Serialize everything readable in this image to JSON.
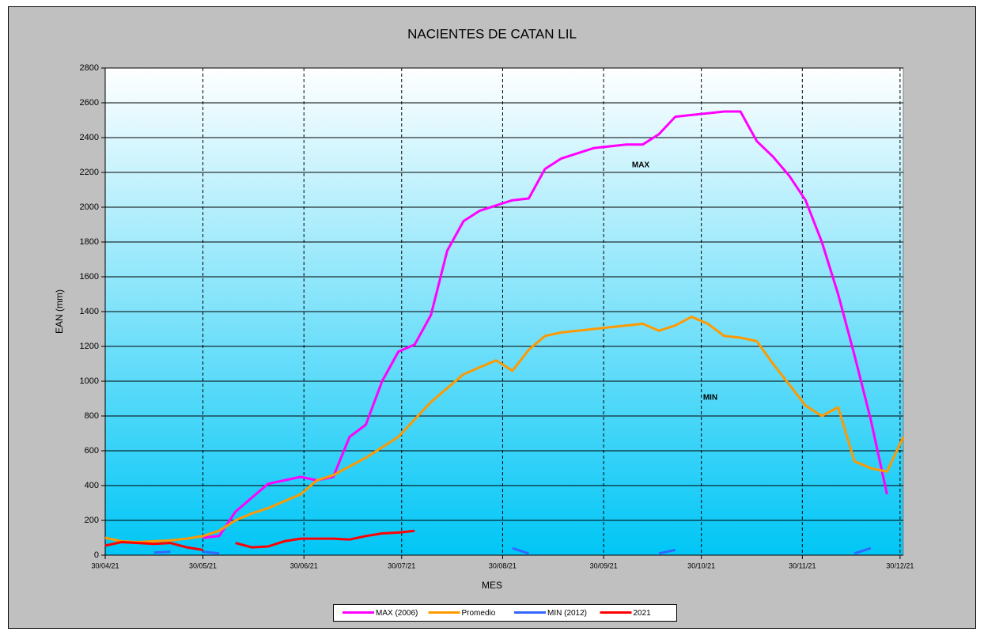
{
  "chart_data": {
    "type": "line",
    "title": "NACIENTES DE CATAN LIL",
    "xlabel": "MES",
    "ylabel": "EAN (mm)",
    "x": [
      "2021-04-30",
      "2021-05-05",
      "2021-05-10",
      "2021-05-15",
      "2021-05-20",
      "2021-05-25",
      "2021-05-30",
      "2021-06-04",
      "2021-06-09",
      "2021-06-14",
      "2021-06-19",
      "2021-06-24",
      "2021-06-29",
      "2021-07-04",
      "2021-07-09",
      "2021-07-14",
      "2021-07-19",
      "2021-07-24",
      "2021-07-29",
      "2021-08-03",
      "2021-08-08",
      "2021-08-13",
      "2021-08-18",
      "2021-08-23",
      "2021-08-28",
      "2021-09-02",
      "2021-09-07",
      "2021-09-12",
      "2021-09-17",
      "2021-09-22",
      "2021-09-27",
      "2021-10-02",
      "2021-10-07",
      "2021-10-12",
      "2021-10-17",
      "2021-10-22",
      "2021-10-27",
      "2021-11-01",
      "2021-11-06",
      "2021-11-11",
      "2021-11-16",
      "2021-11-21",
      "2021-11-26",
      "2021-12-01",
      "2021-12-06",
      "2021-12-11",
      "2021-12-16",
      "2021-12-21",
      "2021-12-26",
      "2021-12-31"
    ],
    "series": [
      {
        "name": "MAX (2006)",
        "color": "#ff00ff",
        "values": [
          null,
          null,
          null,
          null,
          90,
          null,
          100,
          110,
          250,
          330,
          410,
          430,
          450,
          430,
          450,
          680,
          750,
          1000,
          1170,
          1210,
          1380,
          1750,
          1920,
          1980,
          2010,
          2040,
          2050,
          2220,
          2280,
          2310,
          2340,
          2350,
          2360,
          2360,
          2420,
          2520,
          2530,
          2540,
          2550,
          2550,
          2380,
          2290,
          2180,
          2040,
          1800,
          1500,
          1150,
          780,
          350,
          null
        ]
      },
      {
        "name": "Promedio",
        "color": "#ff9900",
        "values": [
          100,
          80,
          75,
          80,
          85,
          95,
          110,
          140,
          200,
          240,
          270,
          310,
          350,
          430,
          460,
          510,
          560,
          620,
          680,
          780,
          880,
          960,
          1040,
          1080,
          1120,
          1060,
          1180,
          1260,
          1280,
          1290,
          1300,
          1310,
          1320,
          1330,
          1290,
          1320,
          1370,
          1330,
          1260,
          1250,
          1230,
          1100,
          980,
          860,
          800,
          850,
          540,
          500,
          480,
          680
        ]
      },
      {
        "name": "MIN (2012)",
        "color": "#3366ff",
        "values": [
          null,
          null,
          null,
          15,
          20,
          null,
          20,
          10,
          null,
          null,
          null,
          null,
          null,
          null,
          null,
          null,
          null,
          null,
          null,
          null,
          null,
          null,
          null,
          null,
          null,
          40,
          10,
          null,
          null,
          null,
          null,
          null,
          null,
          null,
          10,
          30,
          null,
          null,
          null,
          null,
          null,
          null,
          null,
          null,
          null,
          null,
          10,
          40,
          null,
          null
        ]
      },
      {
        "name": "2021",
        "color": "#ff0000",
        "values": [
          55,
          75,
          70,
          65,
          70,
          45,
          30,
          null,
          70,
          45,
          50,
          80,
          95,
          95,
          95,
          90,
          110,
          125,
          130,
          140,
          null,
          null,
          null,
          null,
          null,
          null,
          null,
          null,
          null,
          null,
          null,
          null,
          null,
          null,
          null,
          null,
          null,
          null,
          null,
          null,
          null,
          null,
          null,
          null,
          null,
          null,
          null,
          null,
          null,
          null
        ]
      }
    ],
    "xlim": [
      "2021-04-30",
      "2021-12-31"
    ],
    "xticks": [
      {
        "value": "2021-04-30",
        "label": "30/04/21"
      },
      {
        "value": "2021-05-30",
        "label": "30/05/21"
      },
      {
        "value": "2021-06-30",
        "label": "30/06/21"
      },
      {
        "value": "2021-07-30",
        "label": "30/07/21"
      },
      {
        "value": "2021-08-30",
        "label": "30/08/21"
      },
      {
        "value": "2021-09-30",
        "label": "30/09/21"
      },
      {
        "value": "2021-10-30",
        "label": "30/10/21"
      },
      {
        "value": "2021-11-30",
        "label": "30/11/21"
      },
      {
        "value": "2021-12-30",
        "label": "30/12/21"
      }
    ],
    "ylim": [
      0,
      2800
    ],
    "yticks": [
      0,
      200,
      400,
      600,
      800,
      1000,
      1200,
      1400,
      1600,
      1800,
      2000,
      2200,
      2400,
      2600,
      2800
    ],
    "grid": true,
    "legend": "bottom",
    "annotations": [
      {
        "text": "MAX",
        "color": "#ff00ff"
      },
      {
        "text": "MIN",
        "color": "#0000cc"
      }
    ]
  }
}
